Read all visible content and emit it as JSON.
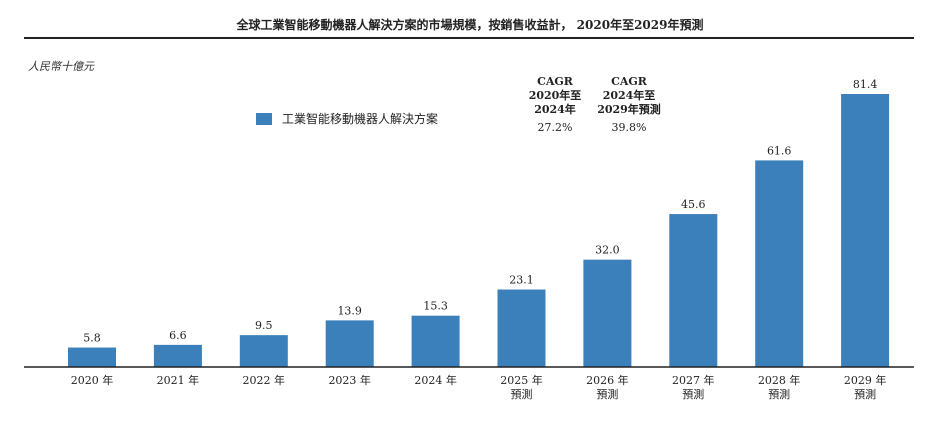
{
  "title": "全球工業智能移動機器人解決方案的市場規模，按銷售收益計， 2020年至2029年預測",
  "unit": "人民幣十億元",
  "legend": {
    "label": "工業智能移動機器人解決方案",
    "color": "#3b80ba"
  },
  "cagr": [
    {
      "h1": "CAGR",
      "h2": "2020年至",
      "h3": "2024年",
      "value": "27.2%"
    },
    {
      "h1": "CAGR",
      "h2": "2024年至",
      "h3": "2029年預測",
      "value": "39.8%"
    }
  ],
  "chart_data": {
    "type": "bar",
    "title": "全球工業智能移動機器人解決方案的市場規模，按銷售收益計， 2020年至2029年預測",
    "ylabel": "人民幣十億元",
    "categories": [
      [
        "2020 年"
      ],
      [
        "2021 年"
      ],
      [
        "2022 年"
      ],
      [
        "2023 年"
      ],
      [
        "2024 年"
      ],
      [
        "2025 年",
        "預測"
      ],
      [
        "2026 年",
        "預測"
      ],
      [
        "2027 年",
        "預測"
      ],
      [
        "2028 年",
        "預測"
      ],
      [
        "2029 年",
        "預測"
      ]
    ],
    "series": [
      {
        "name": "工業智能移動機器人解決方案",
        "values": [
          5.8,
          6.6,
          9.5,
          13.9,
          15.3,
          23.1,
          32.0,
          45.6,
          61.6,
          81.4
        ],
        "labels": [
          "5.8",
          "6.6",
          "9.5",
          "13.9",
          "15.3",
          "23.1",
          "32.0",
          "45.6",
          "61.6",
          "81.4"
        ]
      }
    ],
    "ylim": [
      0,
      85
    ],
    "grid": false,
    "legend": "top-left"
  }
}
